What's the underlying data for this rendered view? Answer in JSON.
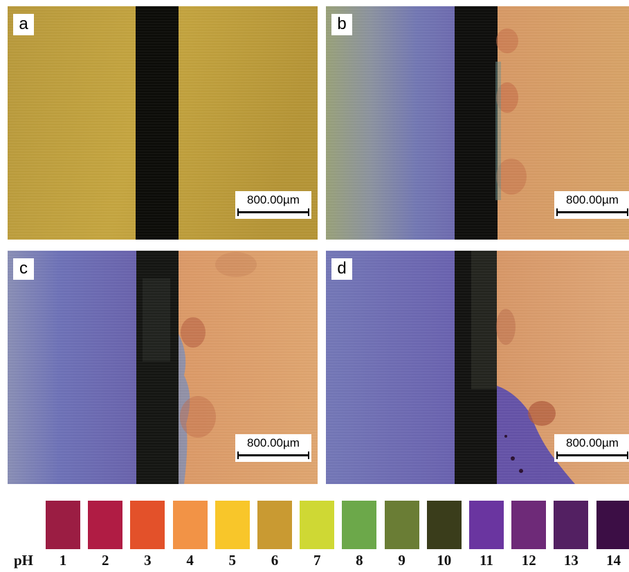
{
  "panels": [
    {
      "label": "a",
      "scale_text": "800.00µm"
    },
    {
      "label": "b",
      "scale_text": "800.00µm"
    },
    {
      "label": "c",
      "scale_text": "800.00µm"
    },
    {
      "label": "d",
      "scale_text": "800.00µm"
    }
  ],
  "legend": {
    "prefix": "pH",
    "swatches": [
      {
        "ph": "1",
        "color": "#9b1d43"
      },
      {
        "ph": "2",
        "color": "#b01c44"
      },
      {
        "ph": "3",
        "color": "#e3512a"
      },
      {
        "ph": "4",
        "color": "#f29346"
      },
      {
        "ph": "5",
        "color": "#f8c62a"
      },
      {
        "ph": "6",
        "color": "#c99a32"
      },
      {
        "ph": "7",
        "color": "#cfd834"
      },
      {
        "ph": "8",
        "color": "#6ca84a"
      },
      {
        "ph": "9",
        "color": "#6a7d35"
      },
      {
        "ph": "10",
        "color": "#3a3d1b"
      },
      {
        "ph": "11",
        "color": "#6a35a0"
      },
      {
        "ph": "12",
        "color": "#6e2a78"
      },
      {
        "ph": "13",
        "color": "#532062"
      },
      {
        "ph": "14",
        "color": "#3c0e45"
      }
    ]
  }
}
